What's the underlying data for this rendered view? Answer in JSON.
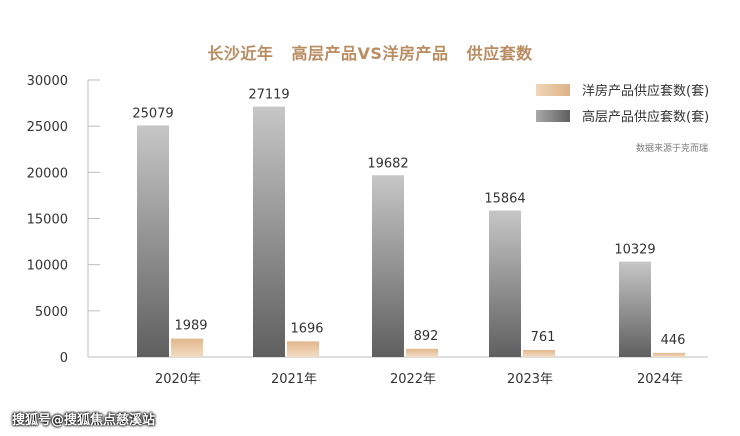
{
  "chart_data": {
    "type": "bar",
    "title": "长沙近年   高层产品VS洋房产品   供应套数",
    "categories": [
      "2020年",
      "2021年",
      "2022年",
      "2023年",
      "2024年"
    ],
    "series": [
      {
        "name": "高层产品供应套数(套)",
        "values": [
          25079,
          27119,
          19682,
          15864,
          10329
        ],
        "color": "#8a8a8a"
      },
      {
        "name": "洋房产品供应套数(套)",
        "values": [
          1989,
          1696,
          892,
          761,
          446
        ],
        "color": "#e8c49c"
      }
    ],
    "yticks": [
      0,
      5000,
      10000,
      15000,
      20000,
      25000,
      30000
    ],
    "ylim": [
      0,
      30000
    ],
    "legend_position": "top-right",
    "xlabel": "",
    "ylabel": "",
    "source_note": "数据来源于克而瑞"
  },
  "watermark": "搜狐号@搜狐焦点慈溪站"
}
